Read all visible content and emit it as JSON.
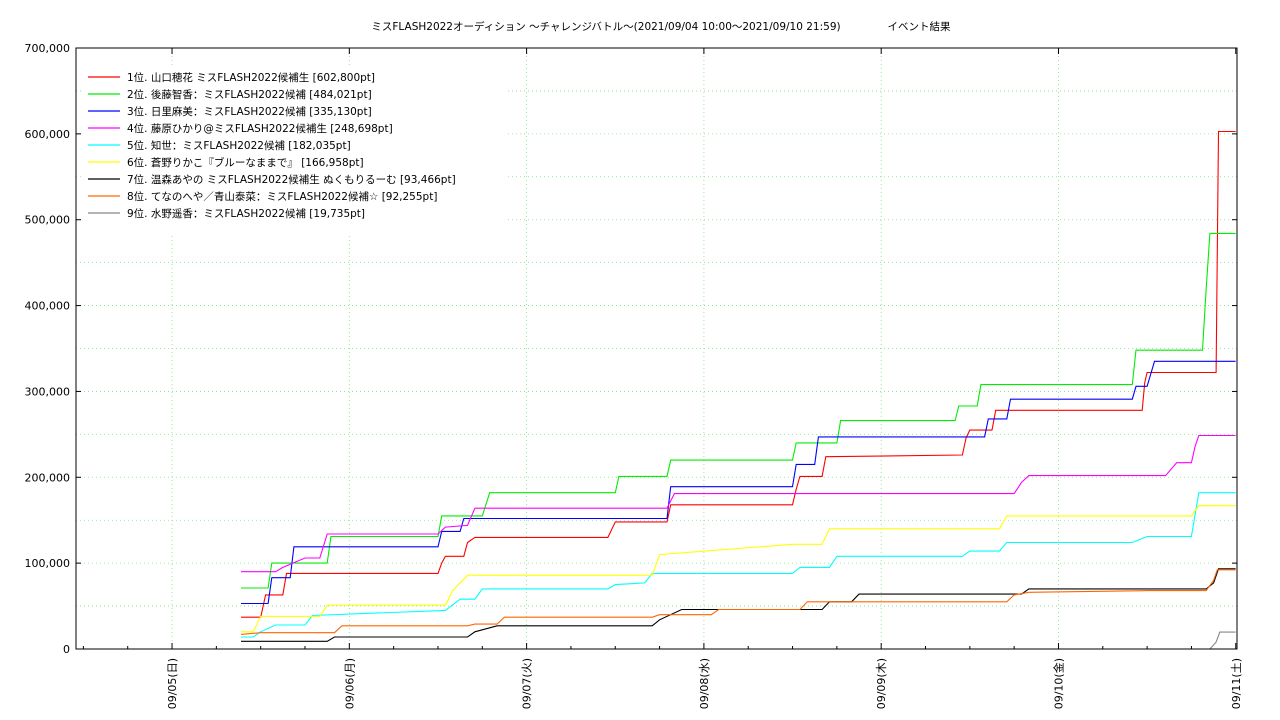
{
  "chart_data": {
    "type": "line",
    "title": "ミスFLASH2022オーディション 〜チャレンジバトル〜(2021/09/04 10:00〜2021/09/10 21:59)",
    "subtitle": "イベント結果",
    "xlabel": "",
    "ylabel": "",
    "x_ticks": [
      "09/05(日)",
      "09/06(月)",
      "09/07(火)",
      "09/08(水)",
      "09/09(木)",
      "09/10(金)",
      "09/11(土)"
    ],
    "x_range": [
      "2021-09-04T11:00",
      "2021-09-11T00:10"
    ],
    "ylim": [
      0,
      700000
    ],
    "y_ticks": [
      "0",
      "100,000",
      "200,000",
      "300,000",
      "400,000",
      "500,000",
      "600,000",
      "700,000"
    ],
    "grid": "dotted-green",
    "legend_position": "top-left",
    "series": [
      {
        "name": "1位. 山口穂花 ミスFLASH2022候補生 [602,800pt]",
        "color": "#ff0000",
        "points": [
          [
            "2021-09-05T09:20",
            37000
          ],
          [
            "2021-09-05T12:00",
            37000
          ],
          [
            "2021-09-05T12:40",
            63000
          ],
          [
            "2021-09-05T15:00",
            63000
          ],
          [
            "2021-09-05T15:30",
            88000
          ],
          [
            "2021-09-06T12:00",
            88000
          ],
          [
            "2021-09-06T12:30",
            100000
          ],
          [
            "2021-09-06T13:00",
            108000
          ],
          [
            "2021-09-06T15:30",
            108000
          ],
          [
            "2021-09-06T16:00",
            124000
          ],
          [
            "2021-09-06T17:00",
            130000
          ],
          [
            "2021-09-07T11:00",
            130000
          ],
          [
            "2021-09-07T12:00",
            148000
          ],
          [
            "2021-09-07T19:00",
            148000
          ],
          [
            "2021-09-07T19:30",
            168000
          ],
          [
            "2021-09-08T12:00",
            168000
          ],
          [
            "2021-09-08T12:30",
            186000
          ],
          [
            "2021-09-08T13:00",
            201000
          ],
          [
            "2021-09-08T16:00",
            201000
          ],
          [
            "2021-09-08T16:30",
            224000
          ],
          [
            "2021-09-09T11:00",
            226000
          ],
          [
            "2021-09-09T11:30",
            246000
          ],
          [
            "2021-09-09T12:00",
            255000
          ],
          [
            "2021-09-09T15:00",
            255000
          ],
          [
            "2021-09-09T15:30",
            278000
          ],
          [
            "2021-09-10T11:20",
            278000
          ],
          [
            "2021-09-10T11:40",
            310000
          ],
          [
            "2021-09-10T12:00",
            322000
          ],
          [
            "2021-09-10T21:20",
            322000
          ],
          [
            "2021-09-10T21:40",
            602800
          ],
          [
            "2021-09-10T23:59",
            602800
          ]
        ]
      },
      {
        "name": "2位. 後藤智香：ミスFLASH2022候補 [484,021pt]",
        "color": "#00ee00",
        "points": [
          [
            "2021-09-05T09:20",
            71000
          ],
          [
            "2021-09-05T13:00",
            71000
          ],
          [
            "2021-09-05T13:30",
            100000
          ],
          [
            "2021-09-05T21:00",
            100000
          ],
          [
            "2021-09-05T21:30",
            131000
          ],
          [
            "2021-09-06T12:00",
            131000
          ],
          [
            "2021-09-06T12:30",
            155000
          ],
          [
            "2021-09-06T18:00",
            155000
          ],
          [
            "2021-09-06T19:00",
            182000
          ],
          [
            "2021-09-07T12:00",
            182000
          ],
          [
            "2021-09-07T12:30",
            201000
          ],
          [
            "2021-09-07T19:00",
            201000
          ],
          [
            "2021-09-07T19:30",
            220000
          ],
          [
            "2021-09-08T12:00",
            220000
          ],
          [
            "2021-09-08T12:30",
            240000
          ],
          [
            "2021-09-08T18:00",
            240000
          ],
          [
            "2021-09-08T18:30",
            266000
          ],
          [
            "2021-09-09T10:00",
            266000
          ],
          [
            "2021-09-09T10:30",
            283000
          ],
          [
            "2021-09-09T13:00",
            283000
          ],
          [
            "2021-09-09T13:30",
            308000
          ],
          [
            "2021-09-10T10:00",
            308000
          ],
          [
            "2021-09-10T10:30",
            348000
          ],
          [
            "2021-09-10T19:30",
            348000
          ],
          [
            "2021-09-10T20:00",
            420000
          ],
          [
            "2021-09-10T20:30",
            484021
          ],
          [
            "2021-09-10T23:59",
            484021
          ]
        ]
      },
      {
        "name": "3位. 日里麻美：ミスFLASH2022候補 [335,130pt]",
        "color": "#0000ff",
        "points": [
          [
            "2021-09-05T09:20",
            53000
          ],
          [
            "2021-09-05T13:00",
            53000
          ],
          [
            "2021-09-05T13:30",
            83000
          ],
          [
            "2021-09-05T16:00",
            83000
          ],
          [
            "2021-09-05T16:30",
            119000
          ],
          [
            "2021-09-06T12:00",
            119000
          ],
          [
            "2021-09-06T12:30",
            137000
          ],
          [
            "2021-09-06T15:00",
            137000
          ],
          [
            "2021-09-06T15:30",
            152000
          ],
          [
            "2021-09-07T19:00",
            152000
          ],
          [
            "2021-09-07T19:30",
            189000
          ],
          [
            "2021-09-08T12:00",
            189000
          ],
          [
            "2021-09-08T12:30",
            215000
          ],
          [
            "2021-09-08T15:00",
            215000
          ],
          [
            "2021-09-08T15:30",
            247000
          ],
          [
            "2021-09-09T14:00",
            247000
          ],
          [
            "2021-09-09T14:30",
            268000
          ],
          [
            "2021-09-09T17:00",
            268000
          ],
          [
            "2021-09-09T17:30",
            291000
          ],
          [
            "2021-09-10T10:00",
            291000
          ],
          [
            "2021-09-10T10:30",
            306000
          ],
          [
            "2021-09-10T12:00",
            306000
          ],
          [
            "2021-09-10T13:00",
            335130
          ],
          [
            "2021-09-10T23:59",
            335130
          ]
        ]
      },
      {
        "name": "4位. 藤原ひかり@ミスFLASH2022候補生 [248,698pt]",
        "color": "#ff00ff",
        "points": [
          [
            "2021-09-05T09:20",
            90000
          ],
          [
            "2021-09-05T14:00",
            90000
          ],
          [
            "2021-09-05T15:00",
            95000
          ],
          [
            "2021-09-05T18:00",
            106000
          ],
          [
            "2021-09-05T20:00",
            106000
          ],
          [
            "2021-09-05T21:00",
            134000
          ],
          [
            "2021-09-06T12:00",
            134000
          ],
          [
            "2021-09-06T13:00",
            142000
          ],
          [
            "2021-09-06T16:00",
            144000
          ],
          [
            "2021-09-06T17:00",
            164000
          ],
          [
            "2021-09-07T19:00",
            164000
          ],
          [
            "2021-09-07T20:00",
            181000
          ],
          [
            "2021-09-09T18:00",
            181000
          ],
          [
            "2021-09-09T19:00",
            194000
          ],
          [
            "2021-09-09T20:00",
            202000
          ],
          [
            "2021-09-10T14:30",
            202000
          ],
          [
            "2021-09-10T16:00",
            217000
          ],
          [
            "2021-09-10T18:00",
            217000
          ],
          [
            "2021-09-10T18:30",
            236000
          ],
          [
            "2021-09-10T19:00",
            248698
          ],
          [
            "2021-09-10T23:59",
            248698
          ]
        ]
      },
      {
        "name": "5位. 知世：ミスFLASH2022候補 [182,035pt]",
        "color": "#00ffff",
        "points": [
          [
            "2021-09-05T09:20",
            14000
          ],
          [
            "2021-09-05T11:00",
            14000
          ],
          [
            "2021-09-05T12:00",
            20000
          ],
          [
            "2021-09-05T14:00",
            28000
          ],
          [
            "2021-09-05T18:00",
            28000
          ],
          [
            "2021-09-05T19:00",
            39000
          ],
          [
            "2021-09-06T13:00",
            45000
          ],
          [
            "2021-09-06T15:00",
            58000
          ],
          [
            "2021-09-06T17:00",
            58000
          ],
          [
            "2021-09-06T18:00",
            70000
          ],
          [
            "2021-09-07T11:00",
            70000
          ],
          [
            "2021-09-07T12:00",
            75000
          ],
          [
            "2021-09-07T16:00",
            77000
          ],
          [
            "2021-09-07T17:00",
            88000
          ],
          [
            "2021-09-08T12:00",
            88000
          ],
          [
            "2021-09-08T13:00",
            95000
          ],
          [
            "2021-09-08T17:00",
            95000
          ],
          [
            "2021-09-08T18:00",
            108000
          ],
          [
            "2021-09-09T11:00",
            108000
          ],
          [
            "2021-09-09T12:00",
            114000
          ],
          [
            "2021-09-09T16:00",
            114000
          ],
          [
            "2021-09-09T17:00",
            124000
          ],
          [
            "2021-09-10T10:00",
            124000
          ],
          [
            "2021-09-10T12:00",
            131000
          ],
          [
            "2021-09-10T18:00",
            131000
          ],
          [
            "2021-09-10T19:00",
            182035
          ],
          [
            "2021-09-10T23:59",
            182035
          ]
        ]
      },
      {
        "name": "6位. 蒼野りかこ『ブルーなままで』 [166,958pt]",
        "color": "#ffff00",
        "points": [
          [
            "2021-09-05T09:20",
            20000
          ],
          [
            "2021-09-05T11:00",
            20000
          ],
          [
            "2021-09-05T12:00",
            38000
          ],
          [
            "2021-09-05T20:00",
            38000
          ],
          [
            "2021-09-05T21:00",
            51000
          ],
          [
            "2021-09-06T13:00",
            51000
          ],
          [
            "2021-09-06T14:00",
            68000
          ],
          [
            "2021-09-06T16:00",
            86000
          ],
          [
            "2021-09-07T17:00",
            86000
          ],
          [
            "2021-09-07T18:00",
            110000
          ],
          [
            "2021-09-08T12:00",
            122000
          ],
          [
            "2021-09-08T16:00",
            122000
          ],
          [
            "2021-09-08T17:00",
            140000
          ],
          [
            "2021-09-09T16:00",
            140000
          ],
          [
            "2021-09-09T17:00",
            155000
          ],
          [
            "2021-09-10T18:00",
            155000
          ],
          [
            "2021-09-10T19:00",
            167000
          ],
          [
            "2021-09-10T23:59",
            166958
          ]
        ]
      },
      {
        "name": "7位. 温森あやの ミスFLASH2022候補生 ぬくもりるーむ [93,466pt]",
        "color": "#000000",
        "points": [
          [
            "2021-09-05T09:20",
            9000
          ],
          [
            "2021-09-05T21:00",
            9000
          ],
          [
            "2021-09-05T22:00",
            14000
          ],
          [
            "2021-09-06T16:00",
            14000
          ],
          [
            "2021-09-06T17:00",
            20000
          ],
          [
            "2021-09-06T20:00",
            27000
          ],
          [
            "2021-09-07T17:00",
            27000
          ],
          [
            "2021-09-07T18:00",
            34000
          ],
          [
            "2021-09-07T21:00",
            46000
          ],
          [
            "2021-09-08T16:00",
            46000
          ],
          [
            "2021-09-08T17:00",
            55000
          ],
          [
            "2021-09-08T20:00",
            55000
          ],
          [
            "2021-09-08T21:00",
            64000
          ],
          [
            "2021-09-09T19:00",
            64000
          ],
          [
            "2021-09-09T20:00",
            70000
          ],
          [
            "2021-09-10T20:00",
            70000
          ],
          [
            "2021-09-10T21:00",
            77000
          ],
          [
            "2021-09-10T21:40",
            93466
          ],
          [
            "2021-09-10T23:59",
            93466
          ]
        ]
      },
      {
        "name": "8位. てなのへや／青山泰菜：ミスFLASH2022候補☆ [92,255pt]",
        "color": "#ff6600",
        "points": [
          [
            "2021-09-05T09:20",
            17000
          ],
          [
            "2021-09-05T12:00",
            19000
          ],
          [
            "2021-09-05T22:00",
            19000
          ],
          [
            "2021-09-05T23:00",
            27000
          ],
          [
            "2021-09-06T16:00",
            27000
          ],
          [
            "2021-09-06T17:00",
            29000
          ],
          [
            "2021-09-06T20:00",
            29000
          ],
          [
            "2021-09-06T21:00",
            37000
          ],
          [
            "2021-09-07T17:00",
            37000
          ],
          [
            "2021-09-07T18:00",
            40000
          ],
          [
            "2021-09-08T01:00",
            40000
          ],
          [
            "2021-09-08T02:00",
            46000
          ],
          [
            "2021-09-08T13:00",
            46000
          ],
          [
            "2021-09-08T14:00",
            55000
          ],
          [
            "2021-09-09T17:00",
            55000
          ],
          [
            "2021-09-09T18:00",
            63000
          ],
          [
            "2021-09-09T20:00",
            66000
          ],
          [
            "2021-09-10T12:00",
            68000
          ],
          [
            "2021-09-10T20:00",
            68000
          ],
          [
            "2021-09-10T21:00",
            80000
          ],
          [
            "2021-09-10T21:30",
            92255
          ],
          [
            "2021-09-10T23:59",
            92255
          ]
        ]
      },
      {
        "name": "9位. 水野遥香：ミスFLASH2022候補 [19,735pt]",
        "color": "#888888",
        "points": [
          [
            "2021-09-10T20:30",
            0
          ],
          [
            "2021-09-10T21:20",
            8000
          ],
          [
            "2021-09-10T21:50",
            19735
          ],
          [
            "2021-09-10T23:59",
            19735
          ]
        ]
      }
    ]
  }
}
